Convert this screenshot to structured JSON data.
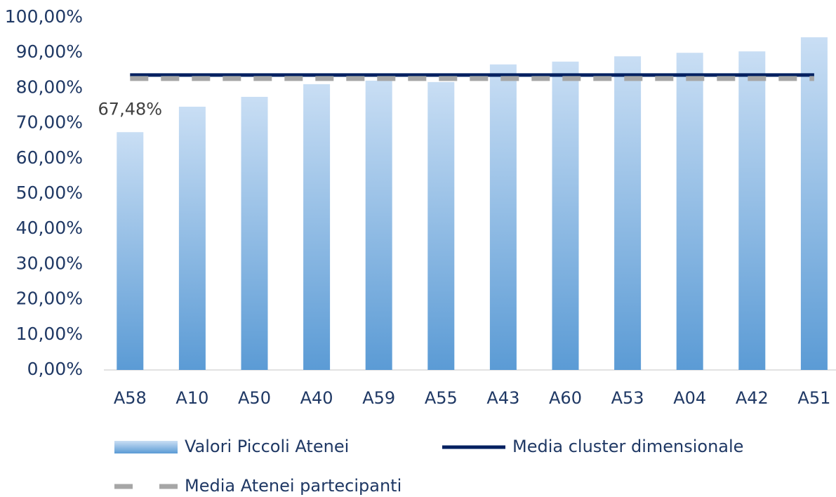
{
  "chart_data": {
    "type": "bar",
    "categories": [
      "A58",
      "A10",
      "A50",
      "A40",
      "A59",
      "A55",
      "A43",
      "A60",
      "A53",
      "A04",
      "A42",
      "A51"
    ],
    "series": [
      {
        "name": "Valori Piccoli Atenei",
        "type": "bar",
        "color": "#5b9bd5",
        "values": [
          67.48,
          74.7,
          77.5,
          81.1,
          82.1,
          81.7,
          86.7,
          87.5,
          89.0,
          90.0,
          90.4,
          94.4
        ],
        "value_labels": [
          "67,48%",
          null,
          null,
          null,
          null,
          null,
          null,
          null,
          null,
          null,
          null,
          null
        ]
      },
      {
        "name": "Media cluster dimensionale",
        "type": "line",
        "color": "#002060",
        "dash": "solid",
        "values": [
          83.7,
          83.7,
          83.7,
          83.7,
          83.7,
          83.7,
          83.7,
          83.7,
          83.7,
          83.7,
          83.7,
          83.7
        ]
      },
      {
        "name": "Media Atenei partecipanti",
        "type": "line",
        "color": "#a6a6a6",
        "dash": "dashed",
        "values": [
          82.7,
          82.7,
          82.7,
          82.7,
          82.7,
          82.7,
          82.7,
          82.7,
          82.7,
          82.7,
          82.7,
          82.7
        ]
      }
    ],
    "ylim": [
      0,
      100
    ],
    "yticks": [
      {
        "value": 0,
        "label": "0,00%"
      },
      {
        "value": 10,
        "label": "10,00%"
      },
      {
        "value": 20,
        "label": "20,00%"
      },
      {
        "value": 30,
        "label": "30,00%"
      },
      {
        "value": 40,
        "label": "40,00%"
      },
      {
        "value": 50,
        "label": "50,00%"
      },
      {
        "value": 60,
        "label": "60,00%"
      },
      {
        "value": 70,
        "label": "70,00%"
      },
      {
        "value": 80,
        "label": "80,00%"
      },
      {
        "value": 90,
        "label": "90,00%"
      },
      {
        "value": 100,
        "label": "100,00%"
      }
    ],
    "grid": false,
    "legend": "bottom"
  }
}
